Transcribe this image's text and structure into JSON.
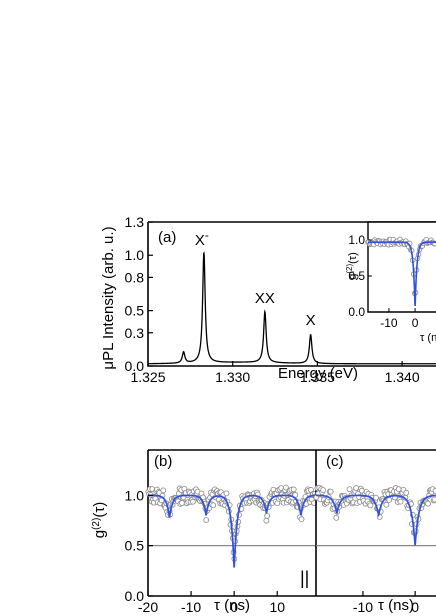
{
  "chart_data": [
    {
      "id": "a",
      "type": "line",
      "panel_label": "(a)",
      "xlabel": "Energy (eV)",
      "ylabel": "μPL Intensity (arb. u.)",
      "xlim": [
        1.325,
        1.342
      ],
      "ylim": [
        0.0,
        1.3
      ],
      "xticks": [
        1.325,
        1.33,
        1.335,
        1.34
      ],
      "xtick_labels": [
        "1.325",
        "1.330",
        "1.335",
        "1.340"
      ],
      "yticks": [
        0.0,
        0.3,
        0.5,
        0.8,
        1.0,
        1.3
      ],
      "ytick_labels": [
        "0.0",
        "0.3",
        "0.5",
        "0.8",
        "1.0",
        "1.3"
      ],
      "baseline": 0.02,
      "peaks": [
        {
          "x": 1.3271,
          "y": 0.1,
          "label": ""
        },
        {
          "x": 1.3283,
          "y": 1.0,
          "label": "X-",
          "label_color": "#3050e0"
        },
        {
          "x": 1.3319,
          "y": 0.46,
          "label": "XX",
          "label_color": "#000000"
        },
        {
          "x": 1.3346,
          "y": 0.26,
          "label": "X",
          "label_color": "#000000"
        }
      ],
      "line_color": "#000000",
      "grid": false
    },
    {
      "id": "a-inset",
      "type": "scatter",
      "ylabel": "g(2)(τ)",
      "xlabel": "τ (ns)",
      "xlim": [
        -18,
        8
      ],
      "ylim": [
        0.0,
        1.25
      ],
      "xticks": [
        -10,
        0
      ],
      "xtick_labels": [
        "-10",
        "0"
      ],
      "yticks": [
        0.0,
        0.5,
        1.0
      ],
      "ytick_labels": [
        "0.0",
        "0.5",
        "1.0"
      ],
      "fit": {
        "dip_center": 0,
        "dip_min": 0.05,
        "plateau": 0.97,
        "width": 0.7
      },
      "fit_color": "#3050e0",
      "marker_color": "#888888"
    },
    {
      "id": "b",
      "type": "scatter",
      "panel_label": "(b)",
      "xlabel": "τ (ns)",
      "ylabel": "g(2)(τ)",
      "xlim": [
        -20,
        19
      ],
      "ylim": [
        0.0,
        1.45
      ],
      "xticks": [
        -20,
        -10,
        0,
        10
      ],
      "xtick_labels": [
        "-20",
        "-10",
        "0",
        "10"
      ],
      "yticks": [
        0.0,
        0.5,
        1.0
      ],
      "ytick_labels": [
        "0.0",
        "0.5",
        "1.0"
      ],
      "fit": {
        "plateau": 1.0,
        "dips": [
          {
            "x": -15,
            "min": 0.78
          },
          {
            "x": -6.5,
            "min": 0.8
          },
          {
            "x": 0,
            "min": 0.27
          },
          {
            "x": 7.5,
            "min": 0.82
          },
          {
            "x": 15.5,
            "min": 0.8
          }
        ],
        "width": 0.7
      },
      "reference_line": 0.5,
      "break_marker": "||",
      "fit_color": "#3050e0",
      "marker_color": "#888888"
    },
    {
      "id": "c",
      "type": "scatter",
      "panel_label": "(c)",
      "xlabel": "τ (ns)",
      "xlim": [
        -19,
        4
      ],
      "ylim": [
        0.0,
        1.45
      ],
      "xticks": [
        -10,
        0
      ],
      "xtick_labels": [
        "-10",
        "0"
      ],
      "fit": {
        "plateau": 1.0,
        "dips": [
          {
            "x": -15,
            "min": 0.82
          },
          {
            "x": -7,
            "min": 0.8
          },
          {
            "x": 0,
            "min": 0.5
          }
        ],
        "width": 0.7
      },
      "reference_line": 0.5,
      "fit_color": "#3050e0",
      "marker_color": "#888888"
    }
  ]
}
